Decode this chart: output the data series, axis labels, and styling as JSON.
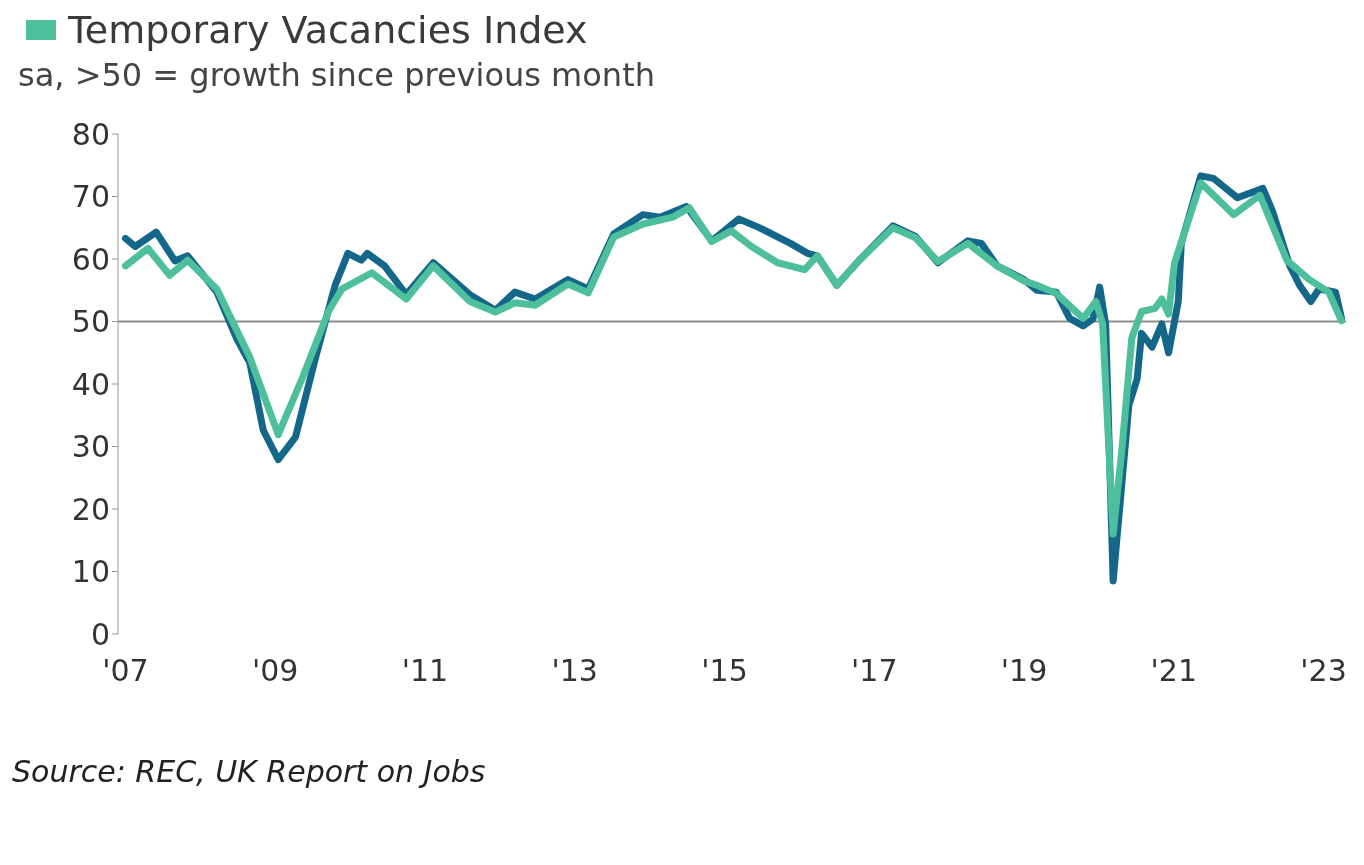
{
  "chart_data": {
    "type": "line",
    "subtitle": "sa, >50 = growth since previous month",
    "annotations": [
      "Source: REC, UK Report on Jobs"
    ],
    "legend": "top left",
    "grid": false,
    "marker": "none",
    "line_style": "solid",
    "xlim": [
      2006.9,
      2023.3
    ],
    "xticks": [
      {
        "value": 2007,
        "label": "'07"
      },
      {
        "value": 2009,
        "label": "'09"
      },
      {
        "value": 2011,
        "label": "'11"
      },
      {
        "value": 2013,
        "label": "'13"
      },
      {
        "value": 2015,
        "label": "'15"
      },
      {
        "value": 2017,
        "label": "'17"
      },
      {
        "value": 2019,
        "label": "'19"
      },
      {
        "value": 2021,
        "label": "'21"
      },
      {
        "value": 2023,
        "label": "'23"
      }
    ],
    "ylim": [
      0,
      80
    ],
    "yticks": [
      0,
      10,
      20,
      30,
      40,
      50,
      60,
      70,
      80
    ],
    "ref_lines": [
      {
        "axis": "y",
        "value": 50,
        "color": "#8c8c8c"
      }
    ],
    "series": [
      {
        "color": "#15678a",
        "x": [
          2007.0,
          2007.13,
          2007.41,
          2007.66,
          2007.83,
          2008.22,
          2008.48,
          2008.66,
          2008.84,
          2009.04,
          2009.27,
          2009.54,
          2009.8,
          2009.97,
          2010.15,
          2010.23,
          2010.46,
          2010.75,
          2011.11,
          2011.6,
          2011.94,
          2012.2,
          2012.47,
          2012.91,
          2013.18,
          2013.52,
          2013.91,
          2014.14,
          2014.49,
          2014.83,
          2015.19,
          2015.45,
          2015.88,
          2016.11,
          2016.24,
          2016.5,
          2016.8,
          2017.25,
          2017.55,
          2017.85,
          2018.25,
          2018.43,
          2018.64,
          2019.0,
          2019.17,
          2019.43,
          2019.61,
          2019.79,
          2019.92,
          2020.01,
          2020.09,
          2020.19,
          2020.4,
          2020.51,
          2020.57,
          2020.71,
          2020.84,
          2020.93,
          2021.06,
          2021.1,
          2021.36,
          2021.53,
          2021.85,
          2022.19,
          2022.32,
          2022.55,
          2022.68,
          2022.83,
          2022.94,
          2023.16,
          2023.24
        ],
        "values": [
          63.3,
          62,
          64.3,
          59.7,
          60.5,
          54.7,
          47.4,
          43.4,
          32.6,
          27.9,
          31.5,
          44.3,
          55.8,
          60.9,
          59.8,
          60.9,
          58.9,
          54.3,
          59.4,
          54.3,
          51.8,
          54.7,
          53.6,
          56.7,
          55.2,
          64.0,
          67.1,
          66.7,
          68.4,
          62.9,
          66.4,
          65.1,
          62.5,
          60.9,
          60.5,
          55.8,
          59.8,
          65.3,
          63.6,
          59.4,
          62.9,
          62.5,
          58.9,
          56.7,
          55.0,
          54.7,
          50.5,
          49.3,
          50.4,
          55.5,
          49.6,
          8.5,
          36.6,
          40.8,
          48.1,
          45.9,
          49.6,
          45.0,
          53.2,
          62.5,
          73.3,
          72.9,
          69.8,
          71.3,
          67.6,
          58.9,
          55.8,
          53.2,
          55.2,
          54.7,
          50.5
        ]
      },
      {
        "name": "Temporary Vacancies Index",
        "color": "#4dbf9c",
        "x": [
          2007.0,
          2007.3,
          2007.59,
          2007.83,
          2008.22,
          2008.66,
          2009.04,
          2009.37,
          2009.71,
          2009.89,
          2010.29,
          2010.75,
          2011.11,
          2011.6,
          2011.94,
          2012.2,
          2012.47,
          2012.91,
          2013.18,
          2013.52,
          2013.91,
          2014.31,
          2014.53,
          2014.83,
          2015.09,
          2015.36,
          2015.71,
          2016.07,
          2016.24,
          2016.5,
          2016.8,
          2017.25,
          2017.55,
          2017.85,
          2018.25,
          2018.64,
          2019.0,
          2019.17,
          2019.43,
          2019.79,
          2019.96,
          2020.05,
          2020.19,
          2020.31,
          2020.44,
          2020.57,
          2020.75,
          2020.84,
          2020.93,
          2021.01,
          2021.36,
          2021.8,
          2022.15,
          2022.51,
          2022.81,
          2023.07,
          2023.24
        ],
        "values": [
          58.9,
          61.7,
          57.4,
          59.8,
          55.2,
          44.3,
          31.9,
          41.2,
          51.6,
          55.2,
          57.8,
          53.6,
          58.9,
          53.2,
          51.5,
          53.0,
          52.6,
          56.0,
          54.6,
          63.5,
          65.6,
          66.7,
          68.2,
          62.8,
          64.5,
          62.0,
          59.4,
          58.3,
          60.5,
          55.8,
          59.8,
          65.0,
          63.4,
          59.6,
          62.5,
          58.9,
          56.5,
          55.8,
          54.5,
          50.5,
          53.2,
          49.6,
          16,
          29.9,
          47.4,
          51.6,
          52.1,
          53.6,
          51.2,
          59.4,
          72.2,
          67.1,
          70.2,
          59.8,
          56.7,
          54.7,
          50.1
        ]
      }
    ]
  }
}
